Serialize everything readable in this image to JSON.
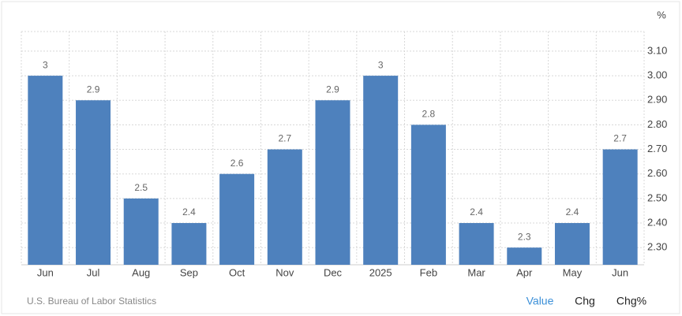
{
  "chart_data": {
    "type": "bar",
    "unit": "%",
    "categories": [
      "Jun",
      "Jul",
      "Aug",
      "Sep",
      "Oct",
      "Nov",
      "Dec",
      "2025",
      "Feb",
      "Mar",
      "Apr",
      "May",
      "Jun"
    ],
    "values": [
      3,
      2.9,
      2.5,
      2.4,
      2.6,
      2.7,
      2.9,
      3,
      2.8,
      2.4,
      2.3,
      2.4,
      2.7
    ],
    "color": "#4e81bd",
    "ylim": [
      2.23,
      3.18
    ],
    "yticks": [
      {
        "value": 2.3,
        "label": "2.30"
      },
      {
        "value": 2.4,
        "label": "2.40"
      },
      {
        "value": 2.5,
        "label": "2.50"
      },
      {
        "value": 2.6,
        "label": "2.60"
      },
      {
        "value": 2.7,
        "label": "2.70"
      },
      {
        "value": 2.8,
        "label": "2.80"
      },
      {
        "value": 2.9,
        "label": "2.90"
      },
      {
        "value": 3.0,
        "label": "3.00"
      },
      {
        "value": 3.1,
        "label": "3.10"
      }
    ],
    "grid": true,
    "source": "U.S. Bureau of Labor Statistics"
  },
  "controls": [
    "Value",
    "Chg",
    "Chg%"
  ]
}
